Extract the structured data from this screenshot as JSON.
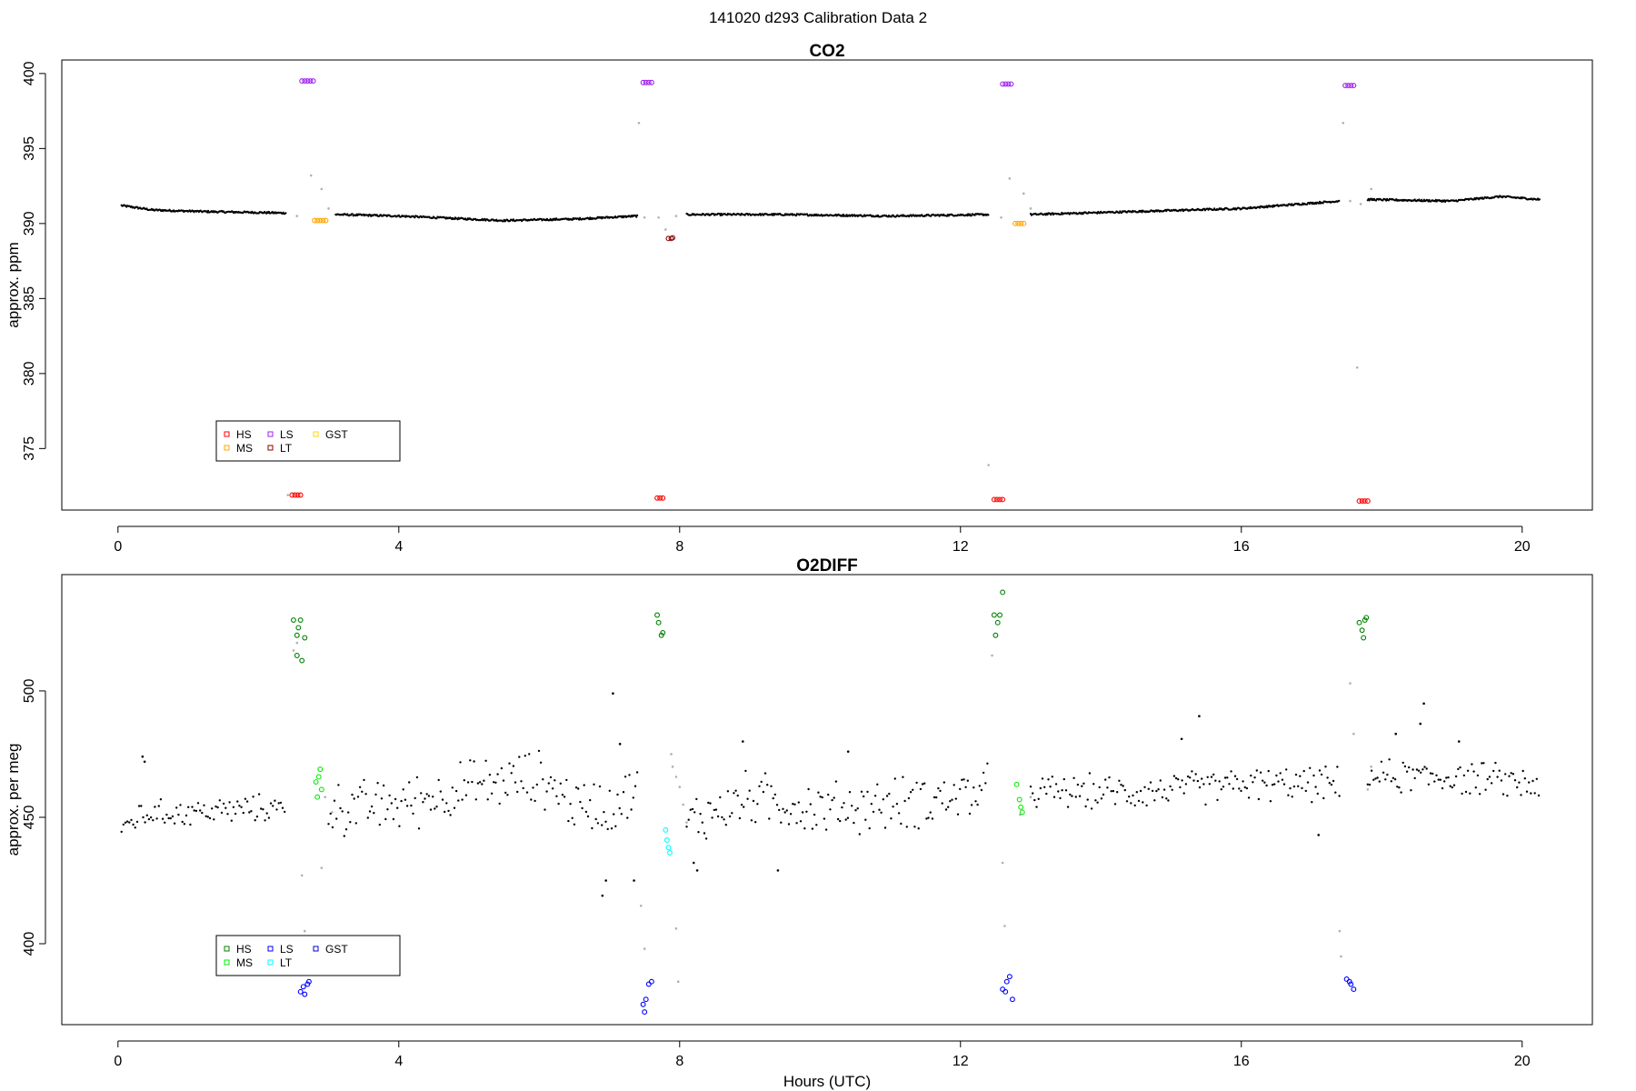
{
  "figure": {
    "suptitle": "141020   d293   Calibration Data 2"
  },
  "chart_data": [
    {
      "type": "scatter",
      "title": "CO2",
      "xlabel": "",
      "ylabel": "approx. ppm",
      "xlim": [
        -0.8,
        21.0
      ],
      "ylim": [
        370.9,
        400.9
      ],
      "xticks": [
        0,
        4,
        8,
        12,
        16,
        20
      ],
      "yticks": [
        375,
        380,
        385,
        390,
        395,
        400
      ],
      "legend": {
        "placement": "bottom-left",
        "entries": [
          {
            "label": "HS",
            "color": "#ff0000"
          },
          {
            "label": "MS",
            "color": "#ffa500"
          },
          {
            "label": "LS",
            "color": "#a020f0"
          },
          {
            "label": "LT",
            "color": "#8b0000"
          },
          {
            "label": "GST",
            "color": "#ffd700"
          }
        ]
      },
      "ambient": {
        "color": "#000000",
        "segments": [
          {
            "x": [
              0.05,
              2.4
            ],
            "y_knots": [
              [
                0.05,
                391.2
              ],
              [
                0.5,
                390.9
              ],
              [
                1.2,
                390.8
              ],
              [
                2.4,
                390.7
              ]
            ]
          },
          {
            "x": [
              3.1,
              7.4
            ],
            "y_knots": [
              [
                3.1,
                390.6
              ],
              [
                4.0,
                390.5
              ],
              [
                5.5,
                390.2
              ],
              [
                6.5,
                390.3
              ],
              [
                7.4,
                390.5
              ]
            ]
          },
          {
            "x": [
              8.1,
              12.4
            ],
            "y_knots": [
              [
                8.1,
                390.6
              ],
              [
                9.5,
                390.6
              ],
              [
                11.0,
                390.5
              ],
              [
                12.4,
                390.6
              ]
            ]
          },
          {
            "x": [
              13.0,
              17.4
            ],
            "y_knots": [
              [
                13.0,
                390.6
              ],
              [
                14.5,
                390.8
              ],
              [
                16.0,
                391.0
              ],
              [
                17.4,
                391.5
              ]
            ]
          },
          {
            "x": [
              17.8,
              20.25
            ],
            "y_knots": [
              [
                17.8,
                391.6
              ],
              [
                19.0,
                391.5
              ],
              [
                19.7,
                391.8
              ],
              [
                20.25,
                391.6
              ]
            ]
          }
        ]
      },
      "transients": {
        "color": "#b0b0b0",
        "points": [
          [
            2.42,
            371.9
          ],
          [
            2.55,
            390.5
          ],
          [
            2.75,
            393.2
          ],
          [
            2.9,
            392.3
          ],
          [
            3.0,
            391.0
          ],
          [
            7.42,
            396.7
          ],
          [
            7.5,
            390.4
          ],
          [
            7.7,
            390.4
          ],
          [
            7.8,
            389.6
          ],
          [
            7.95,
            390.5
          ],
          [
            12.4,
            373.9
          ],
          [
            12.58,
            390.4
          ],
          [
            12.7,
            393.0
          ],
          [
            12.9,
            392.0
          ],
          [
            13.0,
            391.0
          ],
          [
            17.45,
            396.7
          ],
          [
            17.55,
            391.5
          ],
          [
            17.65,
            380.4
          ],
          [
            17.7,
            391.3
          ],
          [
            17.85,
            392.3
          ]
        ]
      },
      "calibration_series": [
        {
          "name": "HS",
          "color": "#ff0000",
          "points": [
            [
              2.48,
              371.9
            ],
            [
              2.52,
              371.9
            ],
            [
              2.56,
              371.9
            ],
            [
              2.6,
              371.9
            ],
            [
              7.68,
              371.7
            ],
            [
              7.72,
              371.7
            ],
            [
              7.76,
              371.7
            ],
            [
              12.48,
              371.6
            ],
            [
              12.52,
              371.6
            ],
            [
              12.56,
              371.6
            ],
            [
              12.6,
              371.6
            ],
            [
              17.68,
              371.5
            ],
            [
              17.72,
              371.5
            ],
            [
              17.76,
              371.5
            ],
            [
              17.8,
              371.5
            ]
          ]
        },
        {
          "name": "MS",
          "color": "#ffa500",
          "points": [
            [
              2.8,
              390.2
            ],
            [
              2.84,
              390.2
            ],
            [
              2.88,
              390.2
            ],
            [
              2.92,
              390.2
            ],
            [
              2.96,
              390.2
            ],
            [
              12.78,
              390.0
            ],
            [
              12.82,
              390.0
            ],
            [
              12.86,
              390.0
            ],
            [
              12.9,
              390.0
            ]
          ]
        },
        {
          "name": "LS",
          "color": "#a020f0",
          "points": [
            [
              2.62,
              399.5
            ],
            [
              2.66,
              399.5
            ],
            [
              2.7,
              399.5
            ],
            [
              2.74,
              399.5
            ],
            [
              2.78,
              399.5
            ],
            [
              7.48,
              399.4
            ],
            [
              7.52,
              399.4
            ],
            [
              7.56,
              399.4
            ],
            [
              7.6,
              399.4
            ],
            [
              12.6,
              399.3
            ],
            [
              12.64,
              399.3
            ],
            [
              12.68,
              399.3
            ],
            [
              12.72,
              399.3
            ],
            [
              17.48,
              399.2
            ],
            [
              17.52,
              399.2
            ],
            [
              17.56,
              399.2
            ],
            [
              17.6,
              399.2
            ]
          ]
        },
        {
          "name": "LT",
          "color": "#8b0000",
          "points": [
            [
              7.84,
              389.0
            ],
            [
              7.88,
              389.0
            ],
            [
              7.9,
              389.05
            ]
          ]
        },
        {
          "name": "GST",
          "color": "#ffd700",
          "points": []
        }
      ]
    },
    {
      "type": "scatter",
      "title": "O2DIFF",
      "xlabel": "Hours (UTC)",
      "ylabel": "approx. per meg",
      "xlim": [
        -0.8,
        21.0
      ],
      "ylim": [
        368.0,
        546.0
      ],
      "xticks": [
        0,
        4,
        8,
        12,
        16,
        20
      ],
      "yticks": [
        400,
        450,
        500
      ],
      "legend": {
        "placement": "bottom-left",
        "entries": [
          {
            "label": "HS",
            "color": "#008000"
          },
          {
            "label": "MS",
            "color": "#00ee00"
          },
          {
            "label": "LS",
            "color": "#0000ff"
          },
          {
            "label": "LT",
            "color": "#00ffff"
          },
          {
            "label": "GST",
            "color": "#0000cd"
          }
        ]
      },
      "ambient": {
        "color": "#000000",
        "segments": [
          {
            "x": [
              0.05,
              2.4
            ],
            "y_knots": [
              [
                0.05,
                444
              ],
              [
                0.3,
                451
              ],
              [
                1.0,
                452
              ],
              [
                2.4,
                454
              ]
            ],
            "spread": 4
          },
          {
            "x": [
              3.0,
              7.4
            ],
            "y_knots": [
              [
                3.0,
                453
              ],
              [
                4.0,
                455
              ],
              [
                5.0,
                462
              ],
              [
                6.0,
                466
              ],
              [
                6.5,
                455
              ],
              [
                7.0,
                455
              ],
              [
                7.4,
                460
              ]
            ],
            "spread": 8
          },
          {
            "x": [
              8.1,
              12.4
            ],
            "y_knots": [
              [
                8.1,
                448
              ],
              [
                9.0,
                458
              ],
              [
                10.0,
                453
              ],
              [
                11.0,
                455
              ],
              [
                12.4,
                460
              ]
            ],
            "spread": 8
          },
          {
            "x": [
              13.0,
              17.4
            ],
            "y_knots": [
              [
                13.0,
                460
              ],
              [
                14.5,
                460
              ],
              [
                16.0,
                463
              ],
              [
                17.4,
                463
              ]
            ],
            "spread": 5
          },
          {
            "x": [
              17.8,
              20.25
            ],
            "y_knots": [
              [
                17.8,
                466
              ],
              [
                19.0,
                466
              ],
              [
                20.25,
                463
              ]
            ],
            "spread": 5
          }
        ],
        "outliers": [
          [
            0.35,
            474
          ],
          [
            0.38,
            472
          ],
          [
            6.9,
            419
          ],
          [
            6.95,
            425
          ],
          [
            7.05,
            499
          ],
          [
            7.15,
            479
          ],
          [
            7.35,
            425
          ],
          [
            8.2,
            432
          ],
          [
            8.25,
            429
          ],
          [
            8.9,
            480
          ],
          [
            9.4,
            429
          ],
          [
            10.4,
            476
          ],
          [
            15.4,
            490
          ],
          [
            15.15,
            481
          ],
          [
            17.1,
            443
          ],
          [
            18.2,
            483
          ],
          [
            18.55,
            487
          ],
          [
            18.6,
            495
          ],
          [
            19.1,
            480
          ]
        ]
      },
      "transients": {
        "color": "#b0b0b0",
        "points": [
          [
            2.5,
            516
          ],
          [
            2.55,
            519
          ],
          [
            2.62,
            427
          ],
          [
            2.66,
            405
          ],
          [
            2.9,
            430
          ],
          [
            2.95,
            458
          ],
          [
            3.05,
            452
          ],
          [
            7.45,
            415
          ],
          [
            7.5,
            398
          ],
          [
            7.88,
            475
          ],
          [
            7.9,
            470
          ],
          [
            7.95,
            466
          ],
          [
            8.0,
            462
          ],
          [
            8.05,
            455
          ],
          [
            8.1,
            448
          ],
          [
            7.98,
            385
          ],
          [
            7.95,
            406
          ],
          [
            12.45,
            514
          ],
          [
            12.6,
            432
          ],
          [
            12.63,
            407
          ],
          [
            12.85,
            451
          ],
          [
            13.0,
            458
          ],
          [
            17.4,
            405
          ],
          [
            17.42,
            395
          ],
          [
            17.55,
            503
          ],
          [
            17.6,
            483
          ],
          [
            17.8,
            461
          ],
          [
            17.85,
            470
          ]
        ]
      },
      "calibration_series": [
        {
          "name": "HS",
          "color": "#008000",
          "points": [
            [
              2.5,
              528
            ],
            [
              2.55,
              522
            ],
            [
              2.57,
              525
            ],
            [
              2.6,
              528
            ],
            [
              2.62,
              512
            ],
            [
              2.66,
              521
            ],
            [
              2.55,
              514
            ],
            [
              7.68,
              530
            ],
            [
              7.7,
              527
            ],
            [
              7.74,
              522
            ],
            [
              7.76,
              523
            ],
            [
              12.48,
              530
            ],
            [
              12.5,
              522
            ],
            [
              12.53,
              527
            ],
            [
              12.56,
              530
            ],
            [
              12.6,
              539
            ],
            [
              17.68,
              527
            ],
            [
              17.72,
              524
            ],
            [
              17.74,
              521
            ],
            [
              17.76,
              528
            ],
            [
              17.78,
              529
            ]
          ]
        },
        {
          "name": "MS",
          "color": "#00ee00",
          "points": [
            [
              2.82,
              464
            ],
            [
              2.86,
              466
            ],
            [
              2.88,
              469
            ],
            [
              2.9,
              461
            ],
            [
              2.84,
              458
            ],
            [
              12.8,
              463
            ],
            [
              12.84,
              457
            ],
            [
              12.86,
              454
            ],
            [
              12.88,
              452
            ]
          ]
        },
        {
          "name": "LS",
          "color": "#0000ff",
          "points": [
            [
              2.6,
              381
            ],
            [
              2.64,
              383
            ],
            [
              2.66,
              380
            ],
            [
              2.7,
              384
            ],
            [
              2.72,
              385
            ],
            [
              7.48,
              376
            ],
            [
              7.5,
              373
            ],
            [
              7.52,
              378
            ],
            [
              7.56,
              384
            ],
            [
              7.6,
              385
            ],
            [
              12.6,
              382
            ],
            [
              12.64,
              381
            ],
            [
              12.66,
              385
            ],
            [
              12.7,
              387
            ],
            [
              12.74,
              378
            ],
            [
              17.5,
              386
            ],
            [
              17.54,
              385
            ],
            [
              17.56,
              384
            ],
            [
              17.6,
              382
            ]
          ]
        },
        {
          "name": "LT",
          "color": "#00ffff",
          "points": [
            [
              7.8,
              445
            ],
            [
              7.82,
              441
            ],
            [
              7.84,
              438
            ],
            [
              7.86,
              436
            ]
          ]
        },
        {
          "name": "GST",
          "color": "#0000cd",
          "points": []
        }
      ]
    }
  ]
}
